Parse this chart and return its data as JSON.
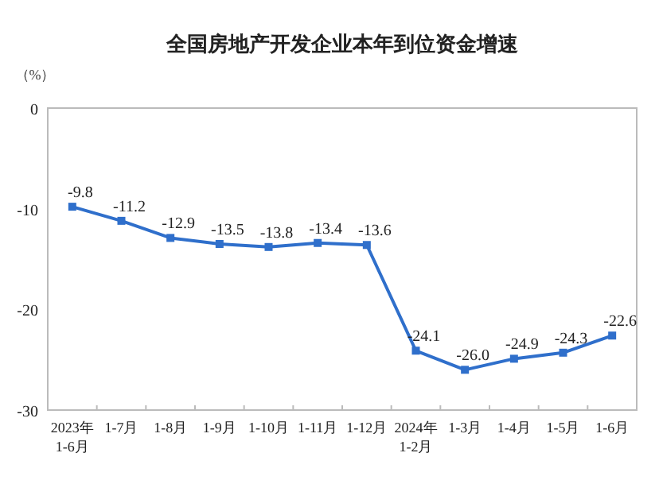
{
  "chart_data": {
    "type": "line",
    "title": "全国房地产开发企业本年到位资金增速",
    "ylabel": "（%）",
    "categories": [
      "2023年\n1-6月",
      "1-7月",
      "1-8月",
      "1-9月",
      "1-10月",
      "1-11月",
      "1-12月",
      "2024年\n1-2月",
      "1-3月",
      "1-4月",
      "1-5月",
      "1-6月"
    ],
    "series": [
      {
        "color": "#2f6fcb",
        "values": [
          -9.8,
          -11.2,
          -12.9,
          -13.5,
          -13.8,
          -13.4,
          -13.6,
          -24.1,
          -26.0,
          -24.9,
          -24.3,
          -22.6
        ],
        "value_labels": [
          "-9.8",
          "-11.2",
          "-12.9",
          "-13.5",
          "-13.8",
          "-13.4",
          "-13.6",
          "-24.1",
          "-26.0",
          "-24.9",
          "-24.3",
          "-22.6"
        ]
      }
    ],
    "ylim": [
      -30,
      0
    ],
    "yticks": [
      0,
      -10,
      -20,
      -30
    ],
    "grid": false,
    "marker": "square",
    "line_style": "solid"
  }
}
